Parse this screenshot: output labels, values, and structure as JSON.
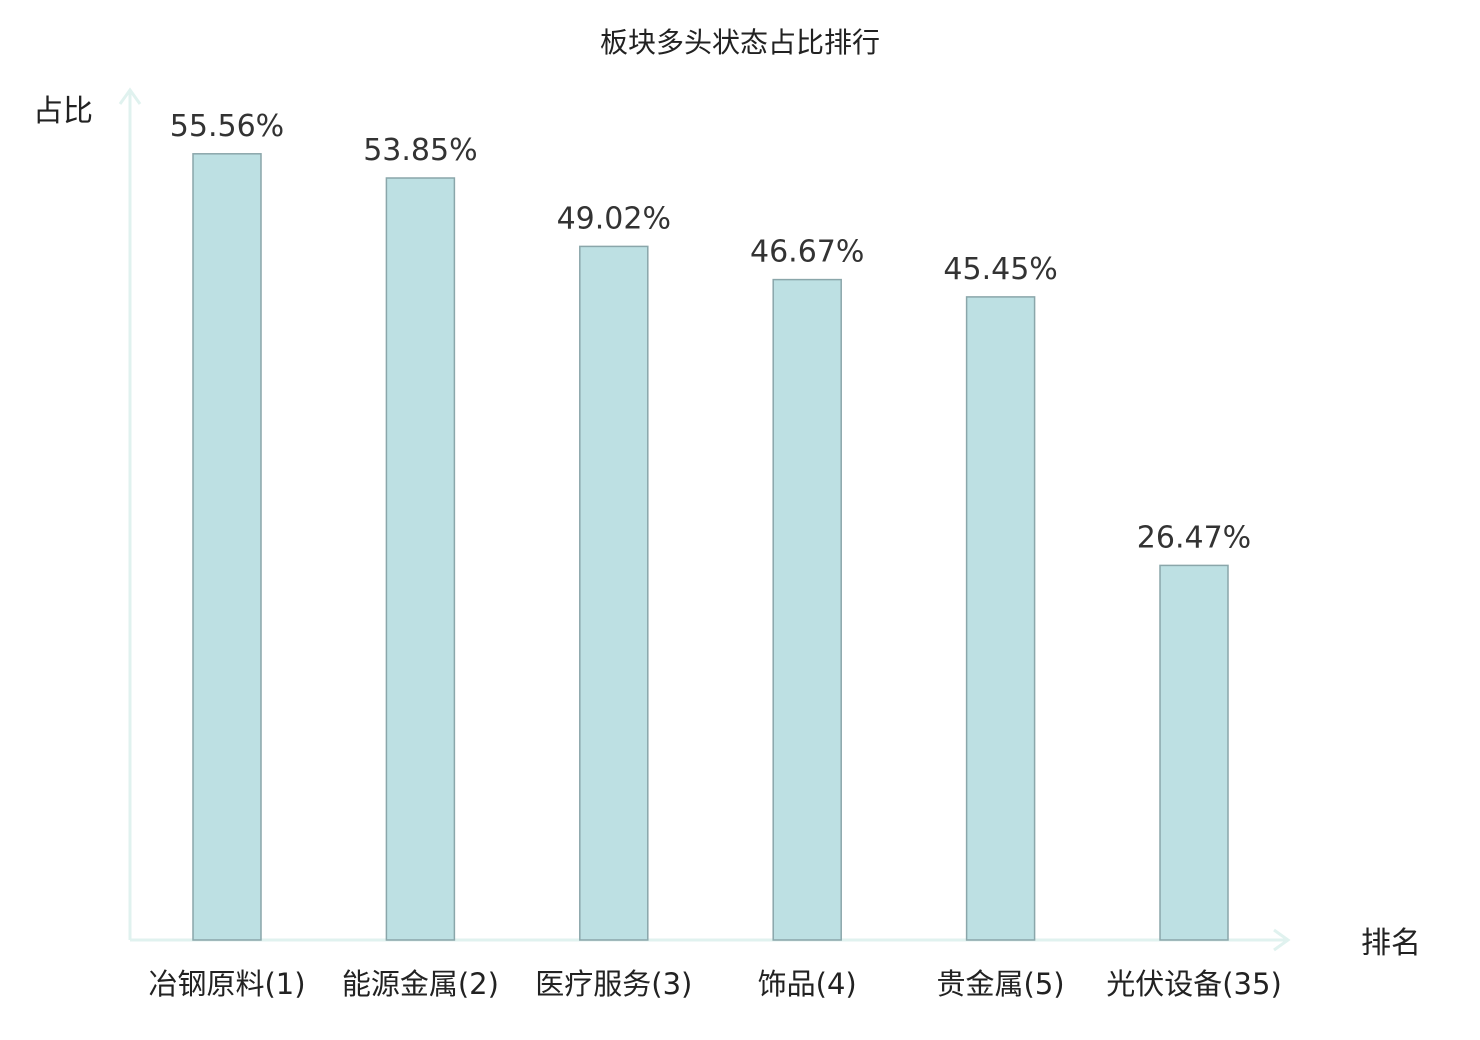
{
  "chart_data": {
    "type": "bar",
    "title": "板块多头状态占比排行",
    "ylabel": "占比",
    "xlabel": "排名",
    "ylim": [
      0,
      60
    ],
    "grid": false,
    "categories": [
      "冶钢原料(1)",
      "能源金属(2)",
      "医疗服务(3)",
      "饰品(4)",
      "贵金属(5)",
      "光伏设备(35)"
    ],
    "values": [
      55.56,
      53.85,
      49.02,
      46.67,
      45.45,
      26.47
    ],
    "value_labels": [
      "55.56%",
      "53.85%",
      "49.02%",
      "46.67%",
      "45.45%",
      "26.47%"
    ],
    "highlight_category": "光伏设备(35)",
    "colors": {
      "bar_fill": "#bde0e3",
      "bar_stroke": "#8aa6aa",
      "axis": "#e0f2ef",
      "highlight_text": "#e8231e",
      "text": "#222222"
    }
  }
}
